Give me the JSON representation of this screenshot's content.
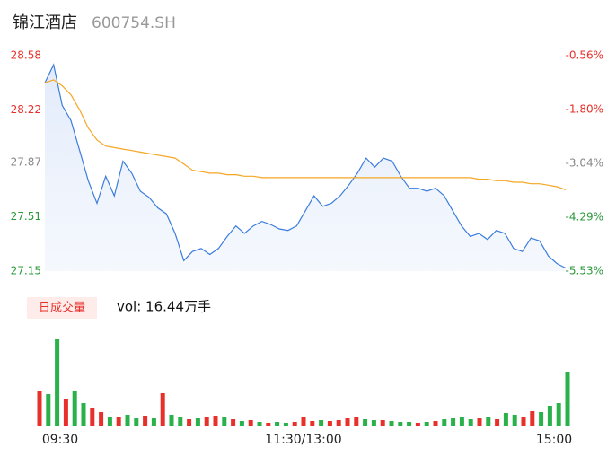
{
  "header": {
    "title": "锦江酒店",
    "code": "600754.SH"
  },
  "chart_data": [
    {
      "type": "line",
      "x": [
        0,
        4,
        8,
        12,
        16,
        20,
        24,
        28,
        32,
        36,
        40,
        44,
        48,
        52,
        56,
        60,
        64,
        68,
        72,
        76,
        80,
        84,
        88,
        92,
        96,
        100,
        104,
        108,
        112,
        116,
        120,
        124,
        128,
        132,
        136,
        140,
        144,
        148,
        152,
        156,
        160,
        164,
        168,
        172,
        176,
        180,
        184,
        188,
        192,
        196,
        200,
        204,
        208,
        212,
        216,
        220,
        224,
        228,
        232,
        236,
        240
      ],
      "xlim": [
        0,
        240
      ],
      "ylim": [
        27.15,
        28.58
      ],
      "yticks": [
        28.58,
        28.22,
        27.87,
        27.51,
        27.15
      ],
      "ytick_colors": [
        "#e8302a",
        "#e8302a",
        "#888888",
        "#2a9a3a",
        "#2a9a3a"
      ],
      "y2lim": [
        -5.53,
        -0.56
      ],
      "y2ticks": [
        {
          "value": -0.56,
          "label": "-0.56%"
        },
        {
          "value": -1.8,
          "label": "-1.80%"
        },
        {
          "value": -3.04,
          "label": "-3.04%"
        },
        {
          "value": -4.29,
          "label": "-4.29%"
        },
        {
          "value": -5.53,
          "label": "-5.53%"
        }
      ],
      "series": [
        {
          "color": "#3b7ddd",
          "fill": true,
          "values": [
            28.4,
            28.52,
            28.25,
            28.15,
            27.95,
            27.75,
            27.6,
            27.78,
            27.65,
            27.88,
            27.8,
            27.68,
            27.64,
            27.57,
            27.53,
            27.4,
            27.22,
            27.28,
            27.3,
            27.26,
            27.3,
            27.38,
            27.45,
            27.4,
            27.45,
            27.48,
            27.46,
            27.43,
            27.42,
            27.45,
            27.55,
            27.65,
            27.58,
            27.6,
            27.65,
            27.72,
            27.8,
            27.9,
            27.84,
            27.9,
            27.88,
            27.78,
            27.7,
            27.7,
            27.68,
            27.7,
            27.65,
            27.55,
            27.45,
            27.38,
            27.4,
            27.36,
            27.42,
            27.4,
            27.3,
            27.28,
            27.37,
            27.35,
            27.25,
            27.2,
            27.17
          ]
        },
        {
          "color": "#f5a623",
          "fill": false,
          "values": [
            28.4,
            28.42,
            28.38,
            28.32,
            28.22,
            28.1,
            28.02,
            27.98,
            27.97,
            27.96,
            27.95,
            27.94,
            27.93,
            27.92,
            27.91,
            27.9,
            27.86,
            27.82,
            27.81,
            27.8,
            27.8,
            27.79,
            27.79,
            27.78,
            27.78,
            27.77,
            27.77,
            27.77,
            27.77,
            27.77,
            27.77,
            27.77,
            27.77,
            27.77,
            27.77,
            27.77,
            27.77,
            27.77,
            27.77,
            27.77,
            27.77,
            27.77,
            27.77,
            27.77,
            27.77,
            27.77,
            27.77,
            27.77,
            27.77,
            27.77,
            27.76,
            27.76,
            27.75,
            27.75,
            27.74,
            27.74,
            27.73,
            27.73,
            27.72,
            27.71,
            27.69
          ]
        }
      ]
    },
    {
      "type": "bar",
      "title": "日成交量",
      "subtitle": "vol: 16.44万手",
      "x": [
        0,
        4,
        8,
        12,
        16,
        20,
        24,
        28,
        32,
        36,
        40,
        44,
        48,
        52,
        56,
        60,
        64,
        68,
        72,
        76,
        80,
        84,
        88,
        92,
        96,
        100,
        104,
        108,
        112,
        116,
        120,
        124,
        128,
        132,
        136,
        140,
        144,
        148,
        152,
        156,
        160,
        164,
        168,
        172,
        176,
        180,
        184,
        188,
        192,
        196,
        200,
        204,
        208,
        212,
        216,
        220,
        224,
        228,
        232,
        236,
        240
      ],
      "xlim": [
        0,
        240
      ],
      "ylim": [
        0,
        11000
      ],
      "xticks": [
        {
          "value": 0,
          "label": "09:30"
        },
        {
          "value": 120,
          "label": "11:30/13:00"
        },
        {
          "value": 240,
          "label": "15:00"
        }
      ],
      "values": [
        3800,
        3500,
        9600,
        3000,
        3800,
        2500,
        2000,
        1500,
        900,
        1000,
        1200,
        800,
        1100,
        800,
        3600,
        1200,
        900,
        700,
        800,
        1000,
        1100,
        900,
        700,
        500,
        600,
        400,
        300,
        400,
        300,
        400,
        900,
        500,
        600,
        500,
        600,
        800,
        1000,
        700,
        600,
        600,
        500,
        400,
        400,
        300,
        400,
        500,
        700,
        800,
        900,
        700,
        800,
        900,
        700,
        1400,
        1200,
        900,
        1600,
        1500,
        2200,
        2500,
        6000
      ],
      "colors": [
        "#e8302a",
        "#2ab14a",
        "#2ab14a",
        "#e8302a",
        "#2ab14a",
        "#2ab14a",
        "#e8302a",
        "#e8302a",
        "#2ab14a",
        "#e8302a",
        "#2ab14a",
        "#2ab14a",
        "#e8302a",
        "#2ab14a",
        "#e8302a",
        "#2ab14a",
        "#2ab14a",
        "#e8302a",
        "#2ab14a",
        "#e8302a",
        "#e8302a",
        "#2ab14a",
        "#e8302a",
        "#2ab14a",
        "#e8302a",
        "#2ab14a",
        "#e8302a",
        "#2ab14a",
        "#2ab14a",
        "#e8302a",
        "#e8302a",
        "#e8302a",
        "#2ab14a",
        "#e8302a",
        "#e8302a",
        "#e8302a",
        "#e8302a",
        "#2ab14a",
        "#2ab14a",
        "#e8302a",
        "#2ab14a",
        "#2ab14a",
        "#2ab14a",
        "#e8302a",
        "#2ab14a",
        "#e8302a",
        "#2ab14a",
        "#2ab14a",
        "#2ab14a",
        "#2ab14a",
        "#e8302a",
        "#2ab14a",
        "#e8302a",
        "#2ab14a",
        "#2ab14a",
        "#e8302a",
        "#e8302a",
        "#2ab14a",
        "#2ab14a",
        "#2ab14a",
        "#2ab14a"
      ]
    }
  ]
}
